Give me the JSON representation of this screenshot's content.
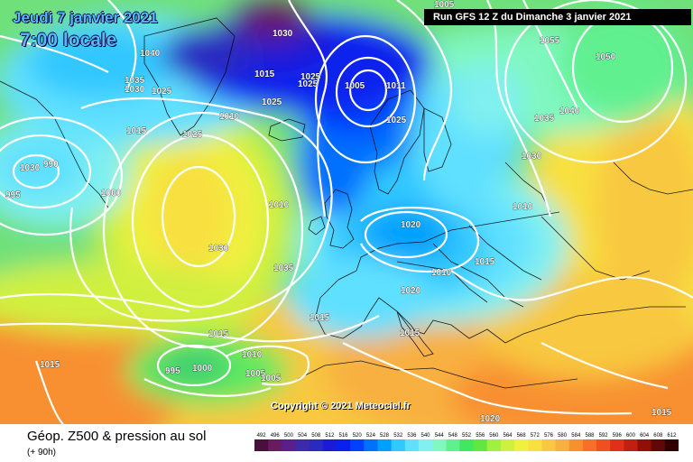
{
  "header": {
    "date_label": "Jeudi 7 janvier 2021",
    "time_label": "7:00 locale",
    "run_label": "Run GFS 12 Z du Dimanche 3 janvier 2021"
  },
  "map": {
    "copyright": "Copyright © 2021 Meteociel.fr",
    "isobar_labels": [
      "1030",
      "1040",
      "1035",
      "1030",
      "1025",
      "1015",
      "1025",
      "1025",
      "1005",
      "1011",
      "1005",
      "1055",
      "1050",
      "1040",
      "1035",
      "1030",
      "1025",
      "1015",
      "1010",
      "1025",
      "1025",
      "1030",
      "990",
      "995",
      "1000",
      "1010",
      "1030",
      "1035",
      "1020",
      "1010",
      "1015",
      "1010",
      "1020",
      "1015",
      "1015",
      "1015",
      "1015",
      "995",
      "1000",
      "1010",
      "1005",
      "1005",
      "1020",
      "1015"
    ]
  },
  "footer": {
    "product_label": "Géop. Z500 & pression au sol",
    "lead_label": "(+ 90h)"
  },
  "legend": {
    "values": [
      "492",
      "496",
      "500",
      "504",
      "508",
      "512",
      "516",
      "520",
      "524",
      "528",
      "532",
      "536",
      "540",
      "544",
      "548",
      "552",
      "556",
      "560",
      "564",
      "568",
      "572",
      "576",
      "580",
      "584",
      "588",
      "592",
      "596",
      "600",
      "604",
      "608",
      "612"
    ],
    "colors": [
      "#4a0f3a",
      "#6a1a5e",
      "#5a1f8a",
      "#3d2aa8",
      "#2a2ac0",
      "#1a1ad8",
      "#0a20ee",
      "#0040ff",
      "#0070ff",
      "#00a0ff",
      "#30c8ff",
      "#60e0ff",
      "#80f0f0",
      "#80f8c0",
      "#60f090",
      "#40e860",
      "#60e840",
      "#a0f040",
      "#d0f040",
      "#f0f040",
      "#f8e040",
      "#f8c840",
      "#f8b040",
      "#f89030",
      "#f87028",
      "#f05020",
      "#e03018",
      "#c02010",
      "#901008",
      "#600808",
      "#300000"
    ]
  },
  "colors": {
    "title": "#58b8ff",
    "isobar": "#ffffff"
  }
}
